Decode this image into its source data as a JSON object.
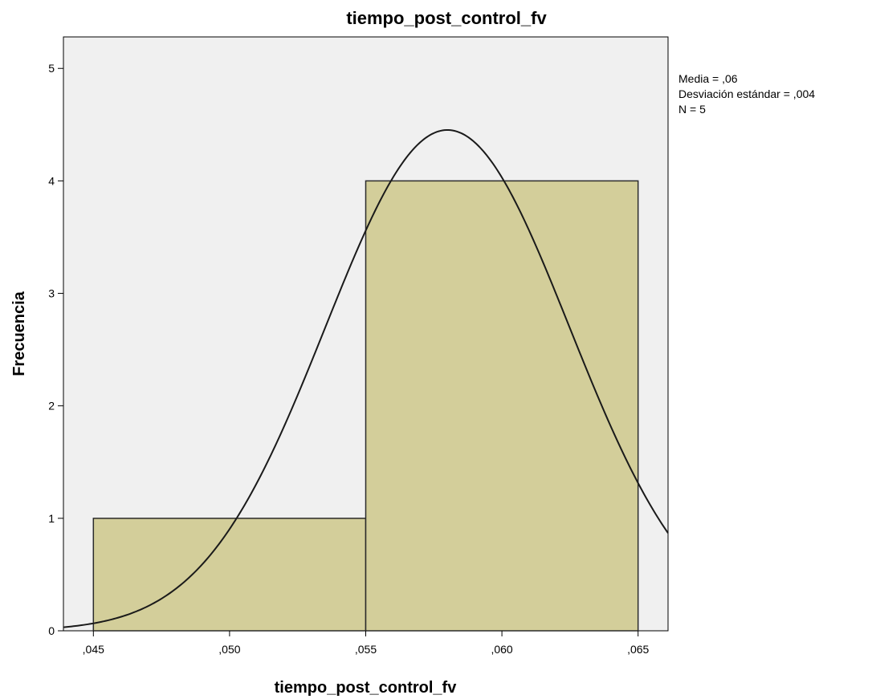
{
  "chart_data": {
    "type": "bar",
    "title": "tiempo_post_control_fv",
    "xlabel": "tiempo_post_control_fv",
    "ylabel": "Frecuencia",
    "xlim": [
      0.0439,
      0.0661
    ],
    "ylim": [
      0,
      5.28
    ],
    "x_ticks": [
      0.045,
      0.05,
      0.055,
      0.06,
      0.065
    ],
    "x_tick_labels": [
      ",045",
      ",050",
      ",055",
      ",060",
      ",065"
    ],
    "y_ticks": [
      0,
      1,
      2,
      3,
      4,
      5
    ],
    "y_tick_labels": [
      "0",
      "1",
      "2",
      "3",
      "4",
      "5"
    ],
    "bins": [
      {
        "start": 0.045,
        "end": 0.055,
        "count": 1
      },
      {
        "start": 0.055,
        "end": 0.065,
        "count": 4
      }
    ],
    "normal_curve": {
      "mean": 0.058,
      "sd": 0.00448,
      "n": 5,
      "bin_width": 0.01
    },
    "stats": {
      "mean_label": "Media = ,06",
      "sd_label": "Desviación estándar = ,004",
      "n_label": "N = 5"
    },
    "colors": {
      "bar_fill": "#d3ce9a",
      "bar_stroke": "#2b2b2b",
      "plot_bg": "#f0f0f0",
      "curve": "#1a1a1a"
    },
    "grid": false,
    "legend": "none"
  }
}
